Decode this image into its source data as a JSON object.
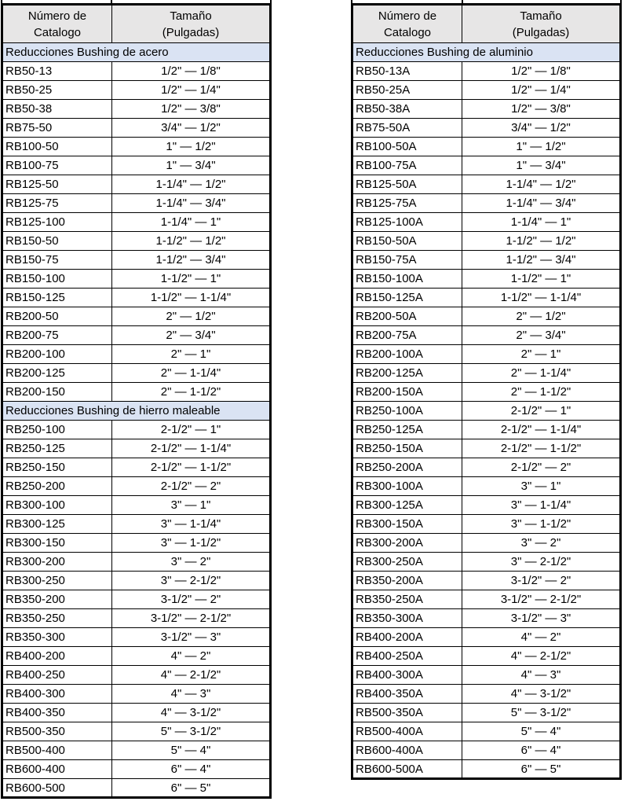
{
  "colors": {
    "header_bg": "#e7e6e6",
    "section_bg": "#dae3f3",
    "border": "#000000",
    "text": "#000000"
  },
  "tables": [
    {
      "header": {
        "col1": "Número de\nCatalogo",
        "col2": "Tamaño\n(Pulgadas)"
      },
      "sections": [
        {
          "title": "Reducciones Bushing de acero",
          "rows": [
            [
              "RB50-13",
              "1/2\" — 1/8\""
            ],
            [
              "RB50-25",
              "1/2\" — 1/4\""
            ],
            [
              "RB50-38",
              "1/2\" — 3/8\""
            ],
            [
              "RB75-50",
              "3/4\" — 1/2\""
            ],
            [
              "RB100-50",
              "1\" — 1/2\""
            ],
            [
              "RB100-75",
              "1\" — 3/4\""
            ],
            [
              "RB125-50",
              "1-1/4\" — 1/2\""
            ],
            [
              "RB125-75",
              "1-1/4\" — 3/4\""
            ],
            [
              "RB125-100",
              "1-1/4\" — 1\""
            ],
            [
              "RB150-50",
              "1-1/2\" — 1/2\""
            ],
            [
              "RB150-75",
              "1-1/2\" — 3/4\""
            ],
            [
              "RB150-100",
              "1-1/2\" — 1\""
            ],
            [
              "RB150-125",
              "1-1/2\" — 1-1/4\""
            ],
            [
              "RB200-50",
              "2\" — 1/2\""
            ],
            [
              "RB200-75",
              "2\" — 3/4\""
            ],
            [
              "RB200-100",
              "2\" — 1\""
            ],
            [
              "RB200-125",
              "2\" — 1-1/4\""
            ],
            [
              "RB200-150",
              "2\" — 1-1/2\""
            ]
          ]
        },
        {
          "title": "Reducciones Bushing de hierro maleable",
          "rows": [
            [
              "RB250-100",
              "2-1/2\" — 1\""
            ],
            [
              "RB250-125",
              "2-1/2\" — 1-1/4\""
            ],
            [
              "RB250-150",
              "2-1/2\" — 1-1/2\""
            ],
            [
              "RB250-200",
              "2-1/2\" — 2\""
            ],
            [
              "RB300-100",
              "3\" — 1\""
            ],
            [
              "RB300-125",
              "3\" — 1-1/4\""
            ],
            [
              "RB300-150",
              "3\" — 1-1/2\""
            ],
            [
              "RB300-200",
              "3\" — 2\""
            ],
            [
              "RB300-250",
              "3\" — 2-1/2\""
            ],
            [
              "RB350-200",
              "3-1/2\" — 2\""
            ],
            [
              "RB350-250",
              "3-1/2\" — 2-1/2\""
            ],
            [
              "RB350-300",
              "3-1/2\" — 3\""
            ],
            [
              "RB400-200",
              "4\" — 2\""
            ],
            [
              "RB400-250",
              "4\" — 2-1/2\""
            ],
            [
              "RB400-300",
              "4\" — 3\""
            ],
            [
              "RB400-350",
              "4\" — 3-1/2\""
            ],
            [
              "RB500-350",
              "5\" — 3-1/2\""
            ],
            [
              "RB500-400",
              "5\" — 4\""
            ],
            [
              "RB600-400",
              "6\" — 4\""
            ],
            [
              "RB600-500",
              "6\" — 5\""
            ]
          ]
        }
      ]
    },
    {
      "header": {
        "col1": "Número de\nCatalogo",
        "col2": "Tamaño\n(Pulgadas)"
      },
      "sections": [
        {
          "title": "Reducciones Bushing de aluminio",
          "rows": [
            [
              "RB50-13A",
              "1/2\" — 1/8\""
            ],
            [
              "RB50-25A",
              "1/2\" — 1/4\""
            ],
            [
              "RB50-38A",
              "1/2\" — 3/8\""
            ],
            [
              "RB75-50A",
              "3/4\" — 1/2\""
            ],
            [
              "RB100-50A",
              "1\" — 1/2\""
            ],
            [
              "RB100-75A",
              "1\" — 3/4\""
            ],
            [
              "RB125-50A",
              "1-1/4\" — 1/2\""
            ],
            [
              "RB125-75A",
              "1-1/4\" — 3/4\""
            ],
            [
              "RB125-100A",
              "1-1/4\" — 1\""
            ],
            [
              "RB150-50A",
              "1-1/2\" — 1/2\""
            ],
            [
              "RB150-75A",
              "1-1/2\" — 3/4\""
            ],
            [
              "RB150-100A",
              "1-1/2\" — 1\""
            ],
            [
              "RB150-125A",
              "1-1/2\" — 1-1/4\""
            ],
            [
              "RB200-50A",
              "2\" — 1/2\""
            ],
            [
              "RB200-75A",
              "2\" — 3/4\""
            ],
            [
              "RB200-100A",
              "2\" — 1\""
            ],
            [
              "RB200-125A",
              "2\" — 1-1/4\""
            ],
            [
              "RB200-150A",
              "2\" — 1-1/2\""
            ],
            [
              "RB250-100A",
              "2-1/2\" — 1\""
            ],
            [
              "RB250-125A",
              "2-1/2\" — 1-1/4\""
            ],
            [
              "RB250-150A",
              "2-1/2\" — 1-1/2\""
            ],
            [
              "RB250-200A",
              "2-1/2\" — 2\""
            ],
            [
              "RB300-100A",
              "3\" — 1\""
            ],
            [
              "RB300-125A",
              "3\" — 1-1/4\""
            ],
            [
              "RB300-150A",
              "3\" — 1-1/2\""
            ],
            [
              "RB300-200A",
              "3\" — 2\""
            ],
            [
              "RB300-250A",
              "3\" — 2-1/2\""
            ],
            [
              "RB350-200A",
              "3-1/2\" — 2\""
            ],
            [
              "RB350-250A",
              "3-1/2\" — 2-1/2\""
            ],
            [
              "RB350-300A",
              "3-1/2\" — 3\""
            ],
            [
              "RB400-200A",
              "4\" — 2\""
            ],
            [
              "RB400-250A",
              "4\" — 2-1/2\""
            ],
            [
              "RB400-300A",
              "4\" — 3\""
            ],
            [
              "RB400-350A",
              "4\" — 3-1/2\""
            ],
            [
              "RB500-350A",
              "5\" — 3-1/2\""
            ],
            [
              "RB500-400A",
              "5\" — 4\""
            ],
            [
              "RB600-400A",
              "6\" — 4\""
            ],
            [
              "RB600-500A",
              "6\" — 5\""
            ]
          ]
        }
      ]
    }
  ]
}
